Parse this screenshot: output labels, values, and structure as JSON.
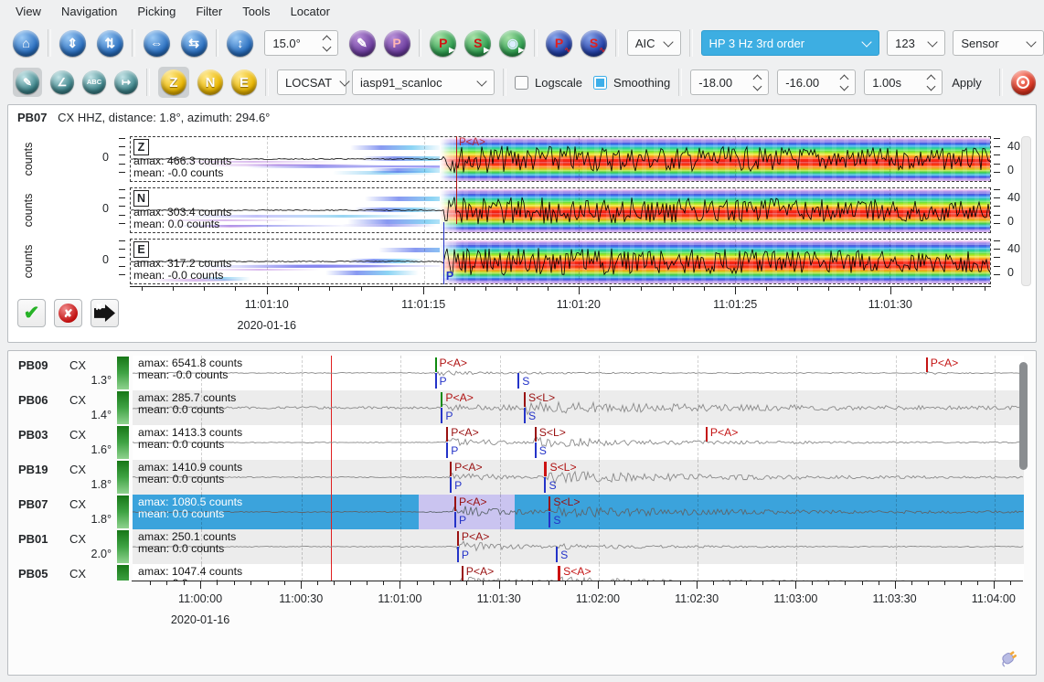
{
  "colors": {
    "accent": "#3daee9",
    "selected_row": "#3ba3dc",
    "pick_red": "#c41414",
    "pick_darkred": "#991111",
    "pick_blue": "#2433c8",
    "pick_green": "#0f8a0f",
    "origin_red": "#e01f1f"
  },
  "menu": {
    "items": [
      {
        "label": "View"
      },
      {
        "label": "Navigation"
      },
      {
        "label": "Picking"
      },
      {
        "label": "Filter"
      },
      {
        "label": "Tools"
      },
      {
        "label": "Locator"
      }
    ]
  },
  "toolbar1": {
    "nav_home": [
      {
        "name": "home-icon",
        "glyph": "⌂"
      }
    ],
    "nav_amp": [
      {
        "name": "amplitude-zoom-icon",
        "glyph": "⇕"
      },
      {
        "name": "amplitude-fit-icon",
        "glyph": "⇅"
      }
    ],
    "nav_time": [
      {
        "name": "time-zoom-out-icon",
        "glyph": "⇔"
      },
      {
        "name": "time-fit-icon",
        "glyph": "⇆"
      }
    ],
    "nav_rows": [
      {
        "name": "row-height-icon",
        "glyph": "↕"
      }
    ],
    "angle_value": "15.0°",
    "pick_tools": [
      {
        "name": "picker-pencil-icon",
        "glyph": "✎"
      },
      {
        "name": "pick-flag-icon",
        "glyph": "P",
        "color": "#ffb4b4"
      }
    ],
    "phase_green": [
      {
        "name": "pick-p-icon",
        "glyph": "P",
        "color": "#d11515",
        "mini": "▶",
        "miniColor": "#ffffff"
      },
      {
        "name": "pick-s-icon",
        "glyph": "S",
        "color": "#d11515",
        "mini": "▶",
        "miniColor": "#ffffff"
      },
      {
        "name": "relocate-icon",
        "glyph": "◉",
        "color": "#dceeff",
        "mini": "▶",
        "miniColor": "#ffffff"
      }
    ],
    "phase_navy": [
      {
        "name": "theoretical-p-icon",
        "glyph": "P",
        "color": "#e02020",
        "mini": "∿",
        "miniColor": "#e02020"
      },
      {
        "name": "theoretical-s-icon",
        "glyph": "S",
        "color": "#e02020",
        "mini": "∿",
        "miniColor": "#e02020"
      }
    ],
    "aic_value": "AIC",
    "filter_value": "HP 3 Hz 3rd order",
    "amplitude_value": "123",
    "sensor_value": "Sensor"
  },
  "toolbar2": {
    "edit_tools": [
      {
        "name": "waveform-pick-icon",
        "glyph": "✎",
        "sel": true
      },
      {
        "name": "measure-angle-icon",
        "glyph": "∠"
      },
      {
        "name": "label-abc-icon",
        "glyph": "ABC",
        "abc": true
      },
      {
        "name": "trace-spacing-icon",
        "glyph": "↦"
      }
    ],
    "components": [
      {
        "name": "component-z-button",
        "glyph": "Z",
        "sel": true
      },
      {
        "name": "component-n-button",
        "glyph": "N"
      },
      {
        "name": "component-e-button",
        "glyph": "E"
      }
    ],
    "locator_value": "LOCSAT",
    "profile_value": "iasp91_scanloc",
    "logscale_label": "Logscale",
    "smoothing_label": "Smoothing",
    "spin_low": "-18.00",
    "spin_high": "-16.00",
    "spin_step": "1.00s",
    "apply_label": "Apply"
  },
  "review": {
    "accept_glyph": "✔",
    "reject_glyph": "✘",
    "defer_glyph": "✘"
  },
  "picker": {
    "station": "PB07",
    "meta": "CX  HHZ, distance: 1.8°, azimuth: 294.6°",
    "ylabel": "counts",
    "zero": "0",
    "traces": [
      {
        "channel": "Z",
        "amax": "amax: 466.3 counts",
        "mean": "mean: -0.0 counts",
        "right_max": "40",
        "right_min": "0"
      },
      {
        "channel": "N",
        "amax": "amax: 303.4 counts",
        "mean": "mean: 0.0 counts",
        "right_max": "40",
        "right_min": "0"
      },
      {
        "channel": "E",
        "amax": "amax: 317.2 counts",
        "mean": "mean: -0.0 counts",
        "right_max": "40",
        "right_min": "0"
      }
    ],
    "picks": {
      "auto_x": 37.9,
      "auto_label": "P<A>",
      "manual_x": 36.4,
      "manual_label": "P"
    },
    "axis_ticks": [
      {
        "label": "11:01:10",
        "pct": 15.9
      },
      {
        "label": "11:01:15",
        "pct": 34.1
      },
      {
        "label": "11:01:20",
        "pct": 52.1
      },
      {
        "label": "11:01:25",
        "pct": 70.3
      },
      {
        "label": "11:01:30",
        "pct": 88.3
      }
    ],
    "date": "2020-01-16",
    "wave": {
      "n": 0.5,
      "mid": 0.48,
      "p": 0.362,
      "pa": 15,
      "pd": 2200
    }
  },
  "stations": {
    "date": "2020-01-16",
    "origin_line_pct": 22.3,
    "gridline_pcts": [
      7.7,
      19.0,
      30.1,
      41.2,
      52.3,
      63.4,
      74.5,
      85.6,
      96.7
    ],
    "axis_ticks": [
      {
        "label": "11:00:00",
        "pct": 7.7
      },
      {
        "label": "11:00:30",
        "pct": 19.0
      },
      {
        "label": "11:01:00",
        "pct": 30.1
      },
      {
        "label": "11:01:30",
        "pct": 41.2
      },
      {
        "label": "11:02:00",
        "pct": 52.3
      },
      {
        "label": "11:02:30",
        "pct": 63.4
      },
      {
        "label": "11:03:00",
        "pct": 74.5
      },
      {
        "label": "11:03:30",
        "pct": 85.6
      },
      {
        "label": "11:04:00",
        "pct": 96.7
      }
    ],
    "rows": [
      {
        "code": "PB09",
        "net": "CX",
        "dist": "1.3°",
        "amax": "amax: 6541.8 counts",
        "mean": "mean: -0.0 counts",
        "selected": false,
        "picks": [
          {
            "x": 33.9,
            "top": "P<A>",
            "line": "#0f8a0f",
            "color": "#b01212",
            "bottom": "P"
          },
          {
            "x": 43.2,
            "bottom": "S"
          },
          {
            "x": 89.0,
            "top": "P<A>",
            "line": "#c41414",
            "color": "#c41414"
          }
        ],
        "wave": {
          "n": 0.5,
          "p": 0.339,
          "pa": 3,
          "pd": 40,
          "s": 0.432,
          "sa": 0.8,
          "sd": 60,
          "p2": 0.89,
          "p2a": 2.2,
          "p2d": 12
        }
      },
      {
        "code": "PB06",
        "net": "CX",
        "dist": "1.4°",
        "amax": "amax: 285.7 counts",
        "mean": "mean: 0.0 counts",
        "selected": false,
        "picks": [
          {
            "x": 34.6,
            "top": "P<A>",
            "line": "#0f8a0f",
            "color": "#b01212",
            "bottom": "P"
          },
          {
            "x": 43.9,
            "top": "S<L>",
            "line": "#991111",
            "color": "#991111",
            "bottom": "S"
          }
        ],
        "wave": {
          "n": 1.3,
          "p": 0.346,
          "pa": 2.5,
          "pd": 200,
          "s": 0.439,
          "sa": 4.5,
          "sd": 260
        }
      },
      {
        "code": "PB03",
        "net": "CX",
        "dist": "1.6°",
        "amax": "amax: 1413.3 counts",
        "mean": "mean: 0.0 counts",
        "selected": false,
        "picks": [
          {
            "x": 35.2,
            "top": "P<A>",
            "line": "#991111",
            "color": "#991111",
            "bottom": "P"
          },
          {
            "x": 45.1,
            "top": "S<L>",
            "line": "#991111",
            "color": "#991111",
            "bottom": "S"
          },
          {
            "x": 64.3,
            "top": "P<A>",
            "line": "#c41414",
            "color": "#c41414"
          }
        ],
        "wave": {
          "n": 0.5,
          "p": 0.352,
          "pa": 4.5,
          "pd": 80,
          "s": 0.451,
          "sa": 4.5,
          "sd": 180
        }
      },
      {
        "code": "PB19",
        "net": "CX",
        "dist": "1.8°",
        "amax": "amax: 1410.9 counts",
        "mean": "mean: 0.0 counts",
        "selected": false,
        "picks": [
          {
            "x": 35.6,
            "top": "P<A>",
            "line": "#991111",
            "color": "#991111",
            "bottom": "P"
          },
          {
            "x": 46.2,
            "top": "S<L>",
            "line": "#cc1111",
            "color": "#b01212",
            "bottom": "S",
            "bold": true
          }
        ],
        "wave": {
          "n": 0.6,
          "p": 0.356,
          "pa": 5,
          "pd": 60,
          "s": 0.462,
          "sa": 6.5,
          "sd": 200
        }
      },
      {
        "code": "PB07",
        "net": "CX",
        "dist": "1.8°",
        "amax": "amax: 1080.5 counts",
        "mean": "mean: 0.0 counts",
        "selected": true,
        "region": {
          "start": 32.1,
          "end": 42.9
        },
        "picks": [
          {
            "x": 36.1,
            "top": "P<A>",
            "line": "#991111",
            "color": "#991111",
            "bottom": "P"
          },
          {
            "x": 46.7,
            "top": "S<L>",
            "line": "#991111",
            "color": "#991111",
            "bottom": "S"
          }
        ],
        "wave": {
          "n": 0.6,
          "p": 0.361,
          "pa": 7,
          "pd": 70,
          "s": 0.467,
          "sa": 5,
          "sd": 250
        }
      },
      {
        "code": "PB01",
        "net": "CX",
        "dist": "2.0°",
        "amax": "amax: 250.1 counts",
        "mean": "mean: 0.0 counts",
        "selected": false,
        "picks": [
          {
            "x": 36.4,
            "top": "P<A>",
            "line": "#991111",
            "color": "#991111",
            "bottom": "P"
          },
          {
            "x": 47.5,
            "bottom": "S"
          }
        ],
        "wave": {
          "n": 0.5,
          "p": 0.364,
          "pa": 7,
          "pd": 50,
          "s": 0.475,
          "sa": 2.5,
          "sd": 120
        }
      },
      {
        "code": "PB05",
        "net": "CX",
        "dist": "",
        "amax": "amax: 1047.4 counts",
        "mean": "mean: 0.0 counts",
        "selected": false,
        "picks": [
          {
            "x": 36.9,
            "top": "P<A>",
            "line": "#991111",
            "color": "#991111"
          },
          {
            "x": 47.7,
            "top": "S<A>",
            "line": "#cc1111",
            "color": "#c41414",
            "bold": true
          }
        ],
        "wave": {
          "n": 0.5,
          "p": 0.369,
          "pa": 5,
          "pd": 60,
          "s": 0.477,
          "sa": 4,
          "sd": 150
        }
      }
    ]
  }
}
